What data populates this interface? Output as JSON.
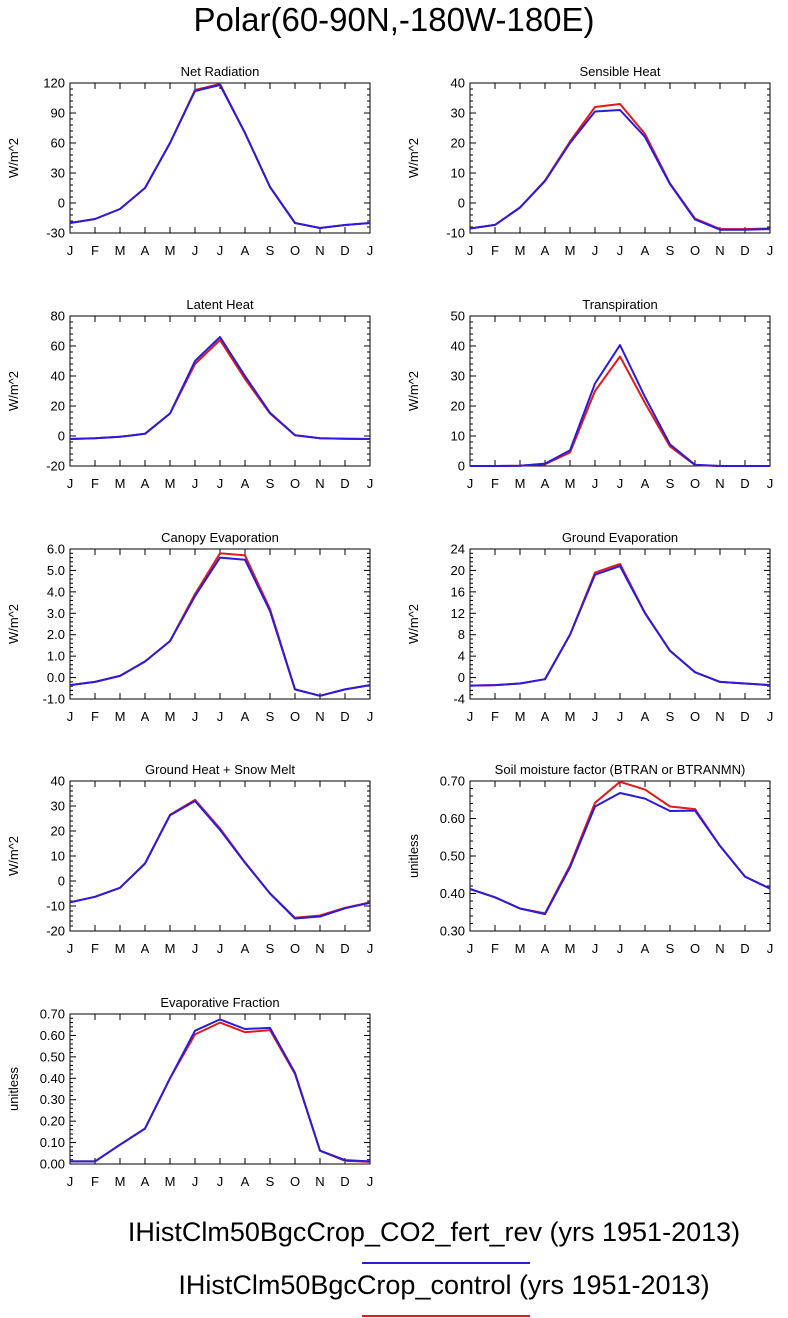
{
  "title": "Polar(60-90N,-180W-180E)",
  "colors": {
    "experiment": "#2b1bdb",
    "control": "#e01b1b"
  },
  "legend": [
    {
      "label": "IHistClm50BgcCrop_CO2_fert_rev (yrs 1951-2013)",
      "color": "#2b1bdb"
    },
    {
      "label": "IHistClm50BgcCrop_control (yrs 1951-2013)",
      "color": "#e01b1b"
    }
  ],
  "chart_data": [
    {
      "type": "line",
      "title": "Net Radiation",
      "ylabel": "W/m^2",
      "x": [
        "J",
        "F",
        "M",
        "A",
        "M",
        "J",
        "J",
        "A",
        "S",
        "O",
        "N",
        "D",
        "J"
      ],
      "ylim": [
        -30,
        120
      ],
      "yticks": [
        -30,
        0,
        30,
        60,
        90,
        120
      ],
      "ytick_labels": [
        "-30",
        "0",
        "30",
        "60",
        "90",
        "120"
      ],
      "series": [
        {
          "color": "#e01b1b",
          "values": [
            -20,
            -16,
            -6,
            15,
            60,
            113,
            119,
            70,
            16,
            -20,
            -25,
            -22,
            -20
          ]
        },
        {
          "color": "#2b1bdb",
          "values": [
            -20,
            -16,
            -6,
            15,
            60,
            112,
            118,
            70,
            16,
            -20,
            -25,
            -22,
            -20
          ]
        }
      ]
    },
    {
      "type": "line",
      "title": "Sensible Heat",
      "ylabel": "W/m^2",
      "x": [
        "J",
        "F",
        "M",
        "A",
        "M",
        "J",
        "J",
        "A",
        "S",
        "O",
        "N",
        "D",
        "J"
      ],
      "ylim": [
        -10,
        40
      ],
      "yticks": [
        -10,
        0,
        10,
        20,
        30,
        40
      ],
      "ytick_labels": [
        "-10",
        "0",
        "10",
        "20",
        "30",
        "40"
      ],
      "series": [
        {
          "color": "#e01b1b",
          "values": [
            -8.5,
            -7.3,
            -1.5,
            7.5,
            20.5,
            32,
            33,
            23,
            6.5,
            -5.2,
            -8.7,
            -8.7,
            -8.5
          ]
        },
        {
          "color": "#2b1bdb",
          "values": [
            -8.5,
            -7.3,
            -1.5,
            7.3,
            20,
            30.5,
            31,
            22,
            6.3,
            -5.5,
            -8.9,
            -8.9,
            -8.7
          ]
        }
      ]
    },
    {
      "type": "line",
      "title": "Latent Heat",
      "ylabel": "W/m^2",
      "x": [
        "J",
        "F",
        "M",
        "A",
        "M",
        "J",
        "J",
        "A",
        "S",
        "O",
        "N",
        "D",
        "J"
      ],
      "ylim": [
        -20,
        80
      ],
      "yticks": [
        -20,
        0,
        20,
        40,
        60,
        80
      ],
      "ytick_labels": [
        "-20",
        "0",
        "20",
        "40",
        "60",
        "80"
      ],
      "series": [
        {
          "color": "#e01b1b",
          "values": [
            -2,
            -1.5,
            -0.5,
            1.5,
            15,
            48,
            64,
            38,
            15,
            0.5,
            -1.5,
            -1.8,
            -2
          ]
        },
        {
          "color": "#2b1bdb",
          "values": [
            -2,
            -1.5,
            -0.5,
            1.5,
            15,
            50,
            66,
            40,
            15.5,
            0.5,
            -1.5,
            -1.8,
            -2
          ]
        }
      ]
    },
    {
      "type": "line",
      "title": "Transpiration",
      "ylabel": "W/m^2",
      "x": [
        "J",
        "F",
        "M",
        "A",
        "M",
        "J",
        "J",
        "A",
        "S",
        "O",
        "N",
        "D",
        "J"
      ],
      "ylim": [
        0,
        50
      ],
      "yticks": [
        0,
        10,
        20,
        30,
        40,
        50
      ],
      "ytick_labels": [
        "0",
        "10",
        "20",
        "30",
        "40",
        "50"
      ],
      "series": [
        {
          "color": "#e01b1b",
          "values": [
            0,
            0,
            0.1,
            0.6,
            4.5,
            25,
            36.5,
            21,
            6.5,
            0.3,
            0,
            0,
            0
          ]
        },
        {
          "color": "#2b1bdb",
          "values": [
            0,
            0,
            0.1,
            0.8,
            5.2,
            27.5,
            40.3,
            23,
            7.2,
            0.4,
            0,
            0,
            0
          ]
        }
      ]
    },
    {
      "type": "line",
      "title": "Canopy Evaporation",
      "ylabel": "W/m^2",
      "x": [
        "J",
        "F",
        "M",
        "A",
        "M",
        "J",
        "J",
        "A",
        "S",
        "O",
        "N",
        "D",
        "J"
      ],
      "ylim": [
        -1.0,
        6.0
      ],
      "yticks": [
        -1,
        0,
        1,
        2,
        3,
        4,
        5,
        6
      ],
      "ytick_labels": [
        "-1.0",
        "0.0",
        "1.0",
        "2.0",
        "3.0",
        "4.0",
        "5.0",
        "6.0"
      ],
      "series": [
        {
          "color": "#e01b1b",
          "values": [
            -0.35,
            -0.2,
            0.08,
            0.75,
            1.7,
            3.9,
            5.8,
            5.7,
            3.2,
            -0.55,
            -0.85,
            -0.55,
            -0.35
          ]
        },
        {
          "color": "#2b1bdb",
          "values": [
            -0.35,
            -0.2,
            0.08,
            0.75,
            1.7,
            3.8,
            5.6,
            5.5,
            3.1,
            -0.55,
            -0.85,
            -0.55,
            -0.35
          ]
        }
      ]
    },
    {
      "type": "line",
      "title": "Ground Evaporation",
      "ylabel": "W/m^2",
      "x": [
        "J",
        "F",
        "M",
        "A",
        "M",
        "J",
        "J",
        "A",
        "S",
        "O",
        "N",
        "D",
        "J"
      ],
      "ylim": [
        -4,
        24
      ],
      "yticks": [
        -4,
        0,
        4,
        8,
        12,
        16,
        20,
        24
      ],
      "ytick_labels": [
        "-4",
        "0",
        "4",
        "8",
        "12",
        "16",
        "20",
        "24"
      ],
      "series": [
        {
          "color": "#e01b1b",
          "values": [
            -1.5,
            -1.4,
            -1.1,
            -0.3,
            8,
            19.6,
            21.2,
            12.1,
            5,
            1,
            -0.8,
            -1.1,
            -1.4
          ]
        },
        {
          "color": "#2b1bdb",
          "values": [
            -1.5,
            -1.4,
            -1.1,
            -0.3,
            8,
            19.2,
            20.8,
            12,
            5,
            1,
            -0.8,
            -1.1,
            -1.4
          ]
        }
      ]
    },
    {
      "type": "line",
      "title": "Ground Heat + Snow Melt",
      "ylabel": "W/m^2",
      "x": [
        "J",
        "F",
        "M",
        "A",
        "M",
        "J",
        "J",
        "A",
        "S",
        "O",
        "N",
        "D",
        "J"
      ],
      "ylim": [
        -20,
        40
      ],
      "yticks": [
        -20,
        -10,
        0,
        10,
        20,
        30,
        40
      ],
      "ytick_labels": [
        "-20",
        "-10",
        "0",
        "10",
        "20",
        "30",
        "40"
      ],
      "series": [
        {
          "color": "#e01b1b",
          "values": [
            -8.5,
            -6.3,
            -2.7,
            7,
            26.5,
            32.5,
            21,
            7.5,
            -5,
            -14.7,
            -13.8,
            -10.7,
            -8.5
          ]
        },
        {
          "color": "#2b1bdb",
          "values": [
            -8.5,
            -6.3,
            -2.7,
            7,
            26.3,
            32,
            20.5,
            7.3,
            -5,
            -15,
            -14.2,
            -10.9,
            -8.7
          ]
        }
      ]
    },
    {
      "type": "line",
      "title": "Soil moisture factor (BTRAN or BTRANMN)",
      "ylabel": "unitless",
      "x": [
        "J",
        "F",
        "M",
        "A",
        "M",
        "J",
        "J",
        "A",
        "S",
        "O",
        "N",
        "D",
        "J"
      ],
      "ylim": [
        0.3,
        0.7
      ],
      "yticks": [
        0.3,
        0.4,
        0.5,
        0.6,
        0.7
      ],
      "ytick_labels": [
        "0.30",
        "0.40",
        "0.50",
        "0.60",
        "0.70"
      ],
      "series": [
        {
          "color": "#e01b1b",
          "values": [
            0.412,
            0.39,
            0.36,
            0.347,
            0.475,
            0.642,
            0.698,
            0.677,
            0.632,
            0.625,
            0.527,
            0.445,
            0.413
          ]
        },
        {
          "color": "#2b1bdb",
          "values": [
            0.412,
            0.39,
            0.36,
            0.345,
            0.47,
            0.632,
            0.668,
            0.653,
            0.62,
            0.621,
            0.527,
            0.445,
            0.413
          ]
        }
      ]
    },
    {
      "type": "line",
      "title": "Evaporative Fraction",
      "ylabel": "unitless",
      "x": [
        "J",
        "F",
        "M",
        "A",
        "M",
        "J",
        "J",
        "A",
        "S",
        "O",
        "N",
        "D",
        "J"
      ],
      "ylim": [
        0.0,
        0.7
      ],
      "yticks": [
        0,
        0.1,
        0.2,
        0.3,
        0.4,
        0.5,
        0.6,
        0.7
      ],
      "ytick_labels": [
        "0.00",
        "0.10",
        "0.20",
        "0.30",
        "0.40",
        "0.50",
        "0.60",
        "0.70"
      ],
      "series": [
        {
          "color": "#e01b1b",
          "values": [
            0.012,
            0.012,
            0.09,
            0.165,
            0.4,
            0.605,
            0.66,
            0.615,
            0.625,
            0.42,
            0.062,
            0.015,
            0.01
          ]
        },
        {
          "color": "#2b1bdb",
          "values": [
            0.012,
            0.012,
            0.09,
            0.165,
            0.4,
            0.622,
            0.675,
            0.63,
            0.635,
            0.425,
            0.062,
            0.018,
            0.012
          ]
        }
      ]
    }
  ]
}
